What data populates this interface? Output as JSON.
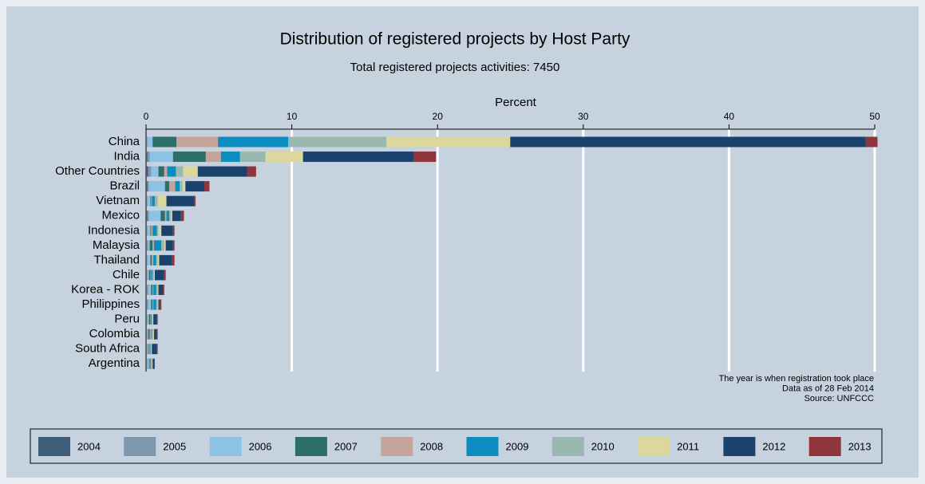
{
  "chart_data": {
    "type": "bar",
    "orientation": "horizontal",
    "stacked": true,
    "title": "Distribution of registered projects by Host Party",
    "subtitle": "Total registered projects activities: 7450",
    "x_label": "Percent",
    "xlim": [
      0,
      50
    ],
    "xticks": [
      0,
      10,
      20,
      30,
      40,
      50
    ],
    "grid": true,
    "legend_position": "bottom",
    "notes": [
      "The year is when registration took place",
      "Data as of 28 Feb 2014",
      "Source: UNFCCC"
    ],
    "categories": [
      "China",
      "India",
      "Other Countries",
      "Brazil",
      "Vietnam",
      "Mexico",
      "Indonesia",
      "Malaysia",
      "Thailand",
      "Chile",
      "Korea - ROK",
      "Philippines",
      "Peru",
      "Colombia",
      "South Africa",
      "Argentina"
    ],
    "series": [
      {
        "name": "2004",
        "color": "#3e5f7a",
        "values": [
          0.05,
          0.1,
          0.15,
          0.1,
          0.05,
          0.1,
          0.05,
          0.05,
          0.05,
          0.05,
          0.05,
          0.05,
          0.05,
          0.05,
          0.05,
          0.05
        ]
      },
      {
        "name": "2005",
        "color": "#7f97ad",
        "values": [
          0.05,
          0.15,
          0.2,
          0.1,
          0.05,
          0.1,
          0.05,
          0.1,
          0.05,
          0.05,
          0.1,
          0.1,
          0.05,
          0.05,
          0.05,
          0.05
        ]
      },
      {
        "name": "2006",
        "color": "#8cc2e6",
        "values": [
          0.35,
          1.6,
          0.5,
          1.1,
          0.2,
          0.8,
          0.2,
          0.1,
          0.2,
          0.1,
          0.2,
          0.2,
          0.1,
          0.05,
          0.05,
          0.1
        ]
      },
      {
        "name": "2007",
        "color": "#2d6e66",
        "values": [
          1.64,
          2.25,
          0.4,
          0.3,
          0.05,
          0.3,
          0.05,
          0.2,
          0.1,
          0.1,
          0.1,
          0.1,
          0.1,
          0.1,
          0.05,
          0.05
        ]
      },
      {
        "name": "2008",
        "color": "#c4a49b",
        "values": [
          2.85,
          1.04,
          0.2,
          0.4,
          0.05,
          0.1,
          0.1,
          0.1,
          0.1,
          0.05,
          0.05,
          0.05,
          0.05,
          0.1,
          0.05,
          0.05
        ]
      },
      {
        "name": "2009",
        "color": "#0b8dc0",
        "values": [
          4.82,
          1.31,
          0.6,
          0.3,
          0.2,
          0.2,
          0.3,
          0.5,
          0.2,
          0.1,
          0.2,
          0.2,
          0.05,
          0.05,
          0.05,
          0.05
        ]
      },
      {
        "name": "2010",
        "color": "#98b8b0",
        "values": [
          6.74,
          1.75,
          0.5,
          0.2,
          0.2,
          0.1,
          0.1,
          0.2,
          0.1,
          0.1,
          0.1,
          0.1,
          0.05,
          0.1,
          0.05,
          0.05
        ]
      },
      {
        "name": "2011",
        "color": "#dcd79d",
        "values": [
          8.49,
          2.57,
          1.0,
          0.2,
          0.6,
          0.1,
          0.2,
          0.1,
          0.1,
          0.05,
          0.05,
          0.05,
          0.05,
          0.05,
          0.05,
          0.05
        ]
      },
      {
        "name": "2012",
        "color": "#1a426d",
        "values": [
          24.4,
          7.6,
          3.4,
          1.3,
          1.9,
          0.6,
          0.8,
          0.5,
          0.9,
          0.65,
          0.3,
          0.1,
          0.25,
          0.2,
          0.35,
          0.1
        ]
      },
      {
        "name": "2013",
        "color": "#90353b",
        "values": [
          0.8,
          1.53,
          0.6,
          0.35,
          0.1,
          0.2,
          0.1,
          0.1,
          0.15,
          0.1,
          0.1,
          0.1,
          0.05,
          0.05,
          0.05,
          0.05
        ]
      }
    ]
  }
}
